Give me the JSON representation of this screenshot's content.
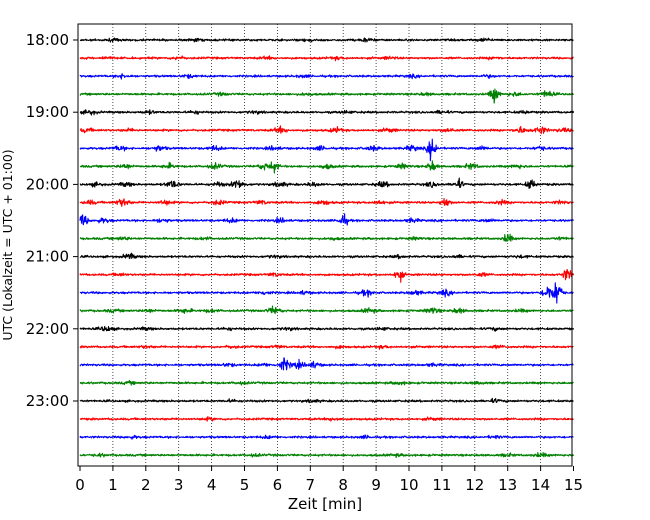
{
  "chart_data": {
    "type": "line",
    "title": "",
    "xlabel": "Zeit  [min]",
    "ylabel": "UTC (Lokalzeit = UTC + 01:00)",
    "xlim": [
      0,
      15
    ],
    "x_ticks": [
      "0",
      "1",
      "2",
      "3",
      "4",
      "5",
      "6",
      "7",
      "8",
      "9",
      "10",
      "11",
      "12",
      "13",
      "14",
      "15"
    ],
    "y_tick_labels": [
      "18:00",
      "19:00",
      "20:00",
      "21:00",
      "22:00",
      "23:00"
    ],
    "grid": "vertical dotted",
    "legend": "none",
    "trace_interval_minutes": 15,
    "trace_colors": [
      "#000000",
      "#ff0000",
      "#0000ff",
      "#008000"
    ],
    "traces": [
      {
        "start": "18:00",
        "events": [
          [
            1.0,
            0.3
          ],
          [
            3.5,
            0.3
          ],
          [
            6.9,
            0.3
          ],
          [
            8.7,
            0.4
          ],
          [
            12.3,
            0.4
          ]
        ]
      },
      {
        "start": "18:15",
        "events": [
          [
            0.8,
            0.3
          ],
          [
            3.0,
            0.4
          ],
          [
            5.7,
            0.3
          ],
          [
            7.8,
            0.3
          ],
          [
            9.4,
            0.3
          ],
          [
            12.6,
            0.3
          ]
        ]
      },
      {
        "start": "18:30",
        "events": [
          [
            1.3,
            0.5
          ],
          [
            3.3,
            0.4
          ],
          [
            6.8,
            0.3
          ],
          [
            10.1,
            0.3
          ],
          [
            12.4,
            0.3
          ]
        ]
      },
      {
        "start": "18:45",
        "events": [
          [
            4.3,
            0.3
          ],
          [
            6.9,
            0.3
          ],
          [
            10.5,
            0.3
          ],
          [
            12.6,
            2.1
          ],
          [
            13.2,
            0.5
          ],
          [
            14.2,
            0.9
          ]
        ]
      },
      {
        "start": "19:00",
        "events": [
          [
            0.3,
            0.6
          ],
          [
            2.1,
            0.4
          ],
          [
            3.5,
            0.4
          ],
          [
            5.3,
            0.3
          ],
          [
            8.1,
            0.3
          ],
          [
            11.0,
            0.4
          ],
          [
            13.5,
            0.3
          ]
        ]
      },
      {
        "start": "19:15",
        "events": [
          [
            0.2,
            0.5
          ],
          [
            1.5,
            0.3
          ],
          [
            6.1,
            0.8
          ],
          [
            7.8,
            0.6
          ],
          [
            9.4,
            0.5
          ],
          [
            11.2,
            0.5
          ],
          [
            13.4,
            0.8
          ],
          [
            14.0,
            1.0
          ],
          [
            14.7,
            0.5
          ]
        ]
      },
      {
        "start": "19:30",
        "events": [
          [
            1.2,
            0.6
          ],
          [
            2.4,
            0.7
          ],
          [
            4.1,
            0.6
          ],
          [
            5.9,
            0.5
          ],
          [
            7.3,
            0.5
          ],
          [
            8.9,
            0.6
          ],
          [
            10.1,
            0.7
          ],
          [
            10.7,
            3.0
          ],
          [
            12.2,
            0.5
          ],
          [
            14.0,
            0.5
          ]
        ]
      },
      {
        "start": "19:45",
        "events": [
          [
            1.4,
            0.6
          ],
          [
            2.7,
            0.6
          ],
          [
            4.1,
            0.7
          ],
          [
            5.6,
            0.8
          ],
          [
            5.9,
            1.4
          ],
          [
            7.5,
            0.6
          ],
          [
            9.8,
            0.6
          ],
          [
            10.7,
            1.4
          ],
          [
            11.9,
            0.7
          ],
          [
            13.3,
            0.5
          ]
        ]
      },
      {
        "start": "20:00",
        "events": [
          [
            0.5,
            0.4
          ],
          [
            1.4,
            0.5
          ],
          [
            2.8,
            1.0
          ],
          [
            4.2,
            0.5
          ],
          [
            4.8,
            1.2
          ],
          [
            6.1,
            0.6
          ],
          [
            7.1,
            0.5
          ],
          [
            9.2,
            0.7
          ],
          [
            10.7,
            0.6
          ],
          [
            11.5,
            1.3
          ],
          [
            13.7,
            1.4
          ]
        ]
      },
      {
        "start": "20:15",
        "events": [
          [
            0.3,
            0.5
          ],
          [
            1.3,
            1.1
          ],
          [
            2.6,
            0.6
          ],
          [
            4.2,
            0.6
          ],
          [
            5.5,
            0.5
          ],
          [
            7.4,
            0.6
          ],
          [
            9.1,
            0.5
          ],
          [
            11.1,
            1.4
          ],
          [
            12.8,
            0.5
          ],
          [
            14.6,
            0.4
          ]
        ]
      },
      {
        "start": "20:30",
        "events": [
          [
            0.1,
            1.6
          ],
          [
            0.7,
            0.6
          ],
          [
            2.5,
            0.5
          ],
          [
            4.6,
            0.5
          ],
          [
            6.1,
            0.5
          ],
          [
            8.0,
            1.7
          ],
          [
            10.1,
            0.5
          ],
          [
            12.4,
            0.4
          ]
        ]
      },
      {
        "start": "20:45",
        "events": [
          [
            1.3,
            0.4
          ],
          [
            3.8,
            0.3
          ],
          [
            7.7,
            0.3
          ],
          [
            10.2,
            0.3
          ],
          [
            13.0,
            1.3
          ],
          [
            14.6,
            0.3
          ]
        ]
      },
      {
        "start": "21:00",
        "events": [
          [
            1.5,
            0.7
          ],
          [
            5.9,
            0.3
          ],
          [
            9.7,
            0.3
          ],
          [
            11.5,
            0.3
          ],
          [
            13.4,
            0.3
          ]
        ]
      },
      {
        "start": "21:15",
        "events": [
          [
            1.2,
            0.3
          ],
          [
            5.9,
            0.4
          ],
          [
            9.7,
            1.6
          ],
          [
            12.2,
            0.4
          ],
          [
            14.8,
            1.7
          ]
        ]
      },
      {
        "start": "21:30",
        "events": [
          [
            5.6,
            0.5
          ],
          [
            6.8,
            0.4
          ],
          [
            8.7,
            0.7
          ],
          [
            10.2,
            0.6
          ],
          [
            11.1,
            0.7
          ],
          [
            14.2,
            2.2
          ],
          [
            14.5,
            3.8
          ]
        ]
      },
      {
        "start": "21:45",
        "events": [
          [
            1.0,
            0.3
          ],
          [
            2.1,
            0.4
          ],
          [
            3.2,
            0.6
          ],
          [
            4.0,
            0.4
          ],
          [
            5.9,
            1.0
          ],
          [
            8.8,
            0.6
          ],
          [
            10.7,
            0.8
          ],
          [
            11.5,
            0.6
          ],
          [
            13.4,
            0.3
          ]
        ]
      },
      {
        "start": "22:00",
        "events": [
          [
            0.8,
            0.7
          ],
          [
            2.0,
            0.3
          ],
          [
            4.5,
            0.3
          ],
          [
            6.3,
            0.3
          ],
          [
            9.2,
            0.3
          ],
          [
            12.6,
            0.3
          ]
        ]
      },
      {
        "start": "22:15",
        "events": [
          [
            2.0,
            0.3
          ],
          [
            4.6,
            0.3
          ],
          [
            6.0,
            0.3
          ],
          [
            7.9,
            0.3
          ],
          [
            9.2,
            0.3
          ],
          [
            12.7,
            0.3
          ]
        ]
      },
      {
        "start": "22:30",
        "events": [
          [
            4.5,
            0.4
          ],
          [
            5.6,
            0.3
          ],
          [
            6.2,
            1.9
          ],
          [
            6.6,
            0.9
          ],
          [
            7.1,
            0.8
          ],
          [
            10.7,
            0.3
          ]
        ]
      },
      {
        "start": "22:45",
        "events": [
          [
            1.5,
            0.3
          ],
          [
            4.9,
            0.3
          ],
          [
            9.7,
            0.4
          ],
          [
            12.1,
            0.3
          ]
        ]
      },
      {
        "start": "23:00",
        "events": [
          [
            4.6,
            0.3
          ],
          [
            7.1,
            0.3
          ],
          [
            12.6,
            0.4
          ]
        ]
      },
      {
        "start": "23:15",
        "events": [
          [
            3.9,
            0.3
          ],
          [
            7.7,
            0.4
          ],
          [
            10.7,
            0.3
          ]
        ]
      },
      {
        "start": "23:30",
        "events": [
          [
            1.6,
            0.3
          ],
          [
            5.7,
            0.3
          ],
          [
            8.7,
            0.3
          ],
          [
            12.6,
            0.3
          ]
        ]
      },
      {
        "start": "23:45",
        "events": [
          [
            0.6,
            0.3
          ],
          [
            5.3,
            0.3
          ],
          [
            9.6,
            0.3
          ],
          [
            13.0,
            0.3
          ],
          [
            14.0,
            0.5
          ]
        ]
      }
    ]
  }
}
